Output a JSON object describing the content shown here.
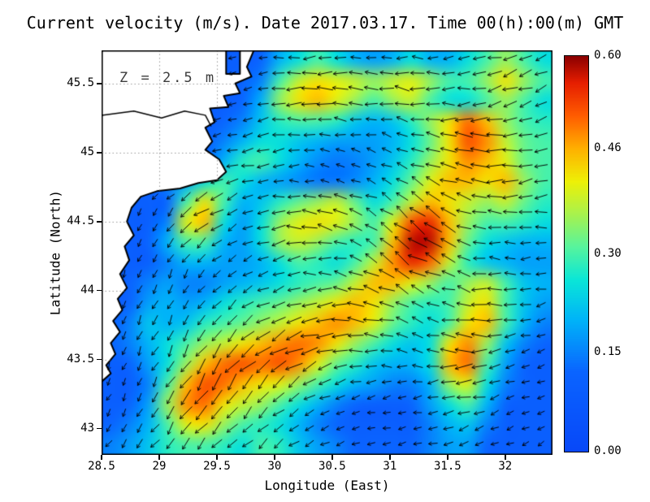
{
  "chart_data": {
    "type": "heatmap",
    "overlays": [
      "vector_field",
      "coastline"
    ],
    "title": "Current velocity (m/s). Date 2017.03.17. Time 00(h):00(m) GMT",
    "annotation": "Z = 2.5 m",
    "units": "m/s",
    "xlabel": "Longitude (East)",
    "ylabel": "Latitude (North)",
    "xlim": [
      28.5,
      32.41
    ],
    "ylim": [
      42.81,
      45.74
    ],
    "x_tick_values": [
      28.5,
      29,
      29.5,
      30,
      30.5,
      31,
      31.5,
      32
    ],
    "x_tick_labels": [
      "28.5",
      "29",
      "29.5",
      "30",
      "30.5",
      "31",
      "31.5",
      "32"
    ],
    "y_tick_values": [
      45.5,
      45,
      44.5,
      44,
      43.5,
      43
    ],
    "y_tick_labels": [
      "45.5",
      "45",
      "44.5",
      "44",
      "43.5",
      "43"
    ],
    "grid_dotted": true,
    "colorbar": {
      "min": 0.0,
      "max": 0.6,
      "tick_values": [
        0.6,
        0.46,
        0.3,
        0.15,
        0.0
      ],
      "tick_labels": [
        "0.60",
        "0.46",
        "0.30",
        "0.15",
        "0.00"
      ]
    },
    "colormap_stops": [
      [
        0.0,
        "#0848f8"
      ],
      [
        0.12,
        "#0a64ff"
      ],
      [
        0.2,
        "#00b4f8"
      ],
      [
        0.26,
        "#0ae6d8"
      ],
      [
        0.31,
        "#56f49e"
      ],
      [
        0.36,
        "#a8f24e"
      ],
      [
        0.41,
        "#eef006"
      ],
      [
        0.46,
        "#ffb000"
      ],
      [
        0.51,
        "#ff5c00"
      ],
      [
        0.56,
        "#e61e00"
      ],
      [
        0.6,
        "#8c0000"
      ]
    ],
    "speed_grid": {
      "ncols": 24,
      "nrows": 20,
      "lon_min": 28.5,
      "lon_max": 32.41,
      "lat_min": 42.81,
      "lat_max": 45.74,
      "values": [
        [
          0.1,
          0.1,
          0.1,
          0.1,
          0.1,
          0.1,
          0.1,
          0.1,
          0.12,
          0.2,
          0.25,
          0.3,
          0.25,
          0.2,
          0.18,
          0.2,
          0.25,
          0.2,
          0.2,
          0.25,
          0.3,
          0.35,
          0.3,
          0.25
        ],
        [
          0.1,
          0.1,
          0.1,
          0.1,
          0.1,
          0.1,
          0.1,
          0.12,
          0.15,
          0.3,
          0.38,
          0.42,
          0.4,
          0.38,
          0.35,
          0.38,
          0.4,
          0.35,
          0.3,
          0.3,
          0.35,
          0.42,
          0.35,
          0.3
        ],
        [
          0.1,
          0.1,
          0.1,
          0.1,
          0.1,
          0.1,
          0.1,
          0.12,
          0.2,
          0.35,
          0.42,
          0.45,
          0.4,
          0.35,
          0.3,
          0.35,
          0.38,
          0.3,
          0.25,
          0.25,
          0.3,
          0.35,
          0.3,
          0.25
        ],
        [
          0.1,
          0.1,
          0.1,
          0.1,
          0.1,
          0.1,
          0.12,
          0.15,
          0.22,
          0.28,
          0.3,
          0.3,
          0.28,
          0.22,
          0.2,
          0.22,
          0.28,
          0.35,
          0.42,
          0.5,
          0.45,
          0.35,
          0.3,
          0.28
        ],
        [
          0.1,
          0.1,
          0.1,
          0.1,
          0.1,
          0.1,
          0.15,
          0.2,
          0.25,
          0.25,
          0.22,
          0.2,
          0.18,
          0.18,
          0.18,
          0.2,
          0.25,
          0.32,
          0.42,
          0.52,
          0.48,
          0.38,
          0.32,
          0.3
        ],
        [
          0.1,
          0.1,
          0.1,
          0.1,
          0.1,
          0.12,
          0.2,
          0.28,
          0.3,
          0.25,
          0.2,
          0.16,
          0.14,
          0.15,
          0.18,
          0.22,
          0.28,
          0.35,
          0.42,
          0.48,
          0.45,
          0.4,
          0.32,
          0.3
        ],
        [
          0.1,
          0.1,
          0.12,
          0.15,
          0.18,
          0.25,
          0.3,
          0.25,
          0.2,
          0.18,
          0.16,
          0.14,
          0.14,
          0.16,
          0.2,
          0.25,
          0.32,
          0.4,
          0.45,
          0.45,
          0.42,
          0.45,
          0.35,
          0.3
        ],
        [
          0.1,
          0.1,
          0.1,
          0.12,
          0.3,
          0.42,
          0.3,
          0.2,
          0.22,
          0.28,
          0.32,
          0.35,
          0.38,
          0.32,
          0.25,
          0.3,
          0.38,
          0.45,
          0.42,
          0.38,
          0.35,
          0.38,
          0.32,
          0.28
        ],
        [
          0.1,
          0.1,
          0.1,
          0.15,
          0.4,
          0.45,
          0.25,
          0.18,
          0.25,
          0.35,
          0.4,
          0.42,
          0.4,
          0.35,
          0.3,
          0.4,
          0.52,
          0.55,
          0.45,
          0.35,
          0.3,
          0.3,
          0.28,
          0.25
        ],
        [
          0.1,
          0.1,
          0.12,
          0.2,
          0.3,
          0.3,
          0.2,
          0.18,
          0.25,
          0.35,
          0.38,
          0.35,
          0.3,
          0.28,
          0.3,
          0.45,
          0.58,
          0.58,
          0.45,
          0.32,
          0.25,
          0.22,
          0.2,
          0.2
        ],
        [
          0.1,
          0.1,
          0.1,
          0.15,
          0.2,
          0.2,
          0.18,
          0.18,
          0.2,
          0.25,
          0.3,
          0.28,
          0.25,
          0.3,
          0.38,
          0.48,
          0.55,
          0.5,
          0.38,
          0.28,
          0.22,
          0.2,
          0.18,
          0.18
        ],
        [
          0.1,
          0.12,
          0.15,
          0.18,
          0.15,
          0.15,
          0.18,
          0.2,
          0.22,
          0.25,
          0.28,
          0.3,
          0.32,
          0.38,
          0.45,
          0.45,
          0.4,
          0.35,
          0.3,
          0.35,
          0.38,
          0.3,
          0.22,
          0.2
        ],
        [
          0.1,
          0.12,
          0.18,
          0.2,
          0.18,
          0.2,
          0.25,
          0.28,
          0.3,
          0.32,
          0.35,
          0.38,
          0.42,
          0.45,
          0.42,
          0.35,
          0.3,
          0.28,
          0.3,
          0.38,
          0.42,
          0.3,
          0.22,
          0.18
        ],
        [
          0.1,
          0.15,
          0.22,
          0.2,
          0.22,
          0.28,
          0.3,
          0.32,
          0.35,
          0.38,
          0.42,
          0.45,
          0.48,
          0.45,
          0.4,
          0.32,
          0.28,
          0.25,
          0.3,
          0.42,
          0.45,
          0.3,
          0.2,
          0.15
        ],
        [
          0.12,
          0.15,
          0.2,
          0.25,
          0.3,
          0.35,
          0.38,
          0.42,
          0.45,
          0.48,
          0.5,
          0.48,
          0.42,
          0.35,
          0.3,
          0.25,
          0.22,
          0.25,
          0.42,
          0.48,
          0.35,
          0.22,
          0.15,
          0.12
        ],
        [
          0.1,
          0.12,
          0.18,
          0.25,
          0.35,
          0.45,
          0.5,
          0.52,
          0.5,
          0.52,
          0.48,
          0.4,
          0.32,
          0.28,
          0.22,
          0.2,
          0.2,
          0.25,
          0.45,
          0.5,
          0.3,
          0.18,
          0.12,
          0.1
        ],
        [
          0.1,
          0.1,
          0.15,
          0.3,
          0.45,
          0.52,
          0.5,
          0.45,
          0.42,
          0.4,
          0.35,
          0.3,
          0.25,
          0.2,
          0.18,
          0.15,
          0.15,
          0.2,
          0.35,
          0.4,
          0.25,
          0.15,
          0.12,
          0.1
        ],
        [
          0.1,
          0.12,
          0.18,
          0.35,
          0.48,
          0.5,
          0.42,
          0.38,
          0.35,
          0.3,
          0.25,
          0.2,
          0.15,
          0.12,
          0.1,
          0.1,
          0.12,
          0.18,
          0.25,
          0.3,
          0.2,
          0.12,
          0.1,
          0.1
        ],
        [
          0.12,
          0.15,
          0.2,
          0.3,
          0.4,
          0.42,
          0.35,
          0.3,
          0.28,
          0.25,
          0.2,
          0.15,
          0.12,
          0.1,
          0.1,
          0.1,
          0.1,
          0.15,
          0.2,
          0.22,
          0.15,
          0.1,
          0.1,
          0.1
        ],
        [
          0.15,
          0.18,
          0.22,
          0.28,
          0.3,
          0.3,
          0.28,
          0.25,
          0.3,
          0.28,
          0.22,
          0.18,
          0.15,
          0.12,
          0.12,
          0.12,
          0.12,
          0.15,
          0.18,
          0.18,
          0.12,
          0.1,
          0.1,
          0.1
        ]
      ]
    },
    "vectors": {
      "direction_grid_deg": {
        "lon0": 28.7,
        "dlon": 0.4,
        "lat0": 45.6,
        "dlat": -0.38,
        "deg": [
          [
            200,
            200,
            195,
            190,
            185,
            180,
            178,
            185,
            195,
            200
          ],
          [
            212,
            206,
            198,
            190,
            180,
            172,
            168,
            176,
            190,
            200
          ],
          [
            228,
            218,
            205,
            190,
            175,
            162,
            152,
            162,
            180,
            195
          ],
          [
            244,
            232,
            214,
            195,
            176,
            156,
            142,
            152,
            170,
            185
          ],
          [
            254,
            244,
            224,
            202,
            182,
            162,
            148,
            158,
            176,
            190
          ],
          [
            250,
            244,
            234,
            215,
            196,
            178,
            162,
            172,
            186,
            196
          ],
          [
            246,
            240,
            234,
            224,
            210,
            196,
            186,
            190,
            196,
            202
          ],
          [
            236,
            232,
            228,
            221,
            212,
            201,
            193,
            196,
            201,
            206
          ]
        ]
      }
    },
    "coastline_lonlat": [
      [
        28.5,
        45.74
      ],
      [
        29.58,
        45.74
      ],
      [
        29.58,
        45.57
      ],
      [
        29.7,
        45.57
      ],
      [
        29.7,
        45.74
      ],
      [
        29.82,
        45.74
      ],
      [
        29.76,
        45.62
      ],
      [
        29.8,
        45.55
      ],
      [
        29.66,
        45.5
      ],
      [
        29.7,
        45.43
      ],
      [
        29.56,
        45.41
      ],
      [
        29.6,
        45.33
      ],
      [
        29.44,
        45.32
      ],
      [
        29.48,
        45.22
      ],
      [
        29.4,
        45.18
      ],
      [
        29.46,
        45.08
      ],
      [
        29.4,
        45.02
      ],
      [
        29.52,
        44.95
      ],
      [
        29.58,
        44.86
      ],
      [
        29.5,
        44.8
      ],
      [
        29.34,
        44.78
      ],
      [
        29.18,
        44.74
      ],
      [
        28.98,
        44.72
      ],
      [
        28.84,
        44.68
      ],
      [
        28.76,
        44.6
      ],
      [
        28.72,
        44.5
      ],
      [
        28.78,
        44.4
      ],
      [
        28.7,
        44.32
      ],
      [
        28.74,
        44.22
      ],
      [
        28.66,
        44.12
      ],
      [
        28.72,
        44.02
      ],
      [
        28.64,
        43.94
      ],
      [
        28.68,
        43.86
      ],
      [
        28.6,
        43.78
      ],
      [
        28.66,
        43.7
      ],
      [
        28.58,
        43.62
      ],
      [
        28.62,
        43.54
      ],
      [
        28.54,
        43.46
      ],
      [
        28.58,
        43.4
      ],
      [
        28.5,
        43.34
      ]
    ],
    "coast_detail_lonlat": [
      [
        28.5,
        45.27
      ],
      [
        28.78,
        45.3
      ],
      [
        29.02,
        45.25
      ],
      [
        29.22,
        45.3
      ],
      [
        29.4,
        45.27
      ],
      [
        29.45,
        45.19
      ]
    ]
  }
}
